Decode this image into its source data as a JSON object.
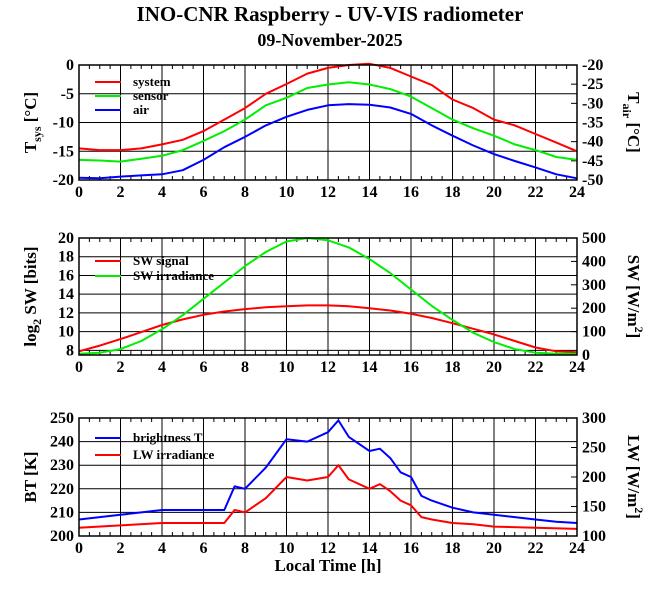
{
  "chart_data": {
    "title": "INO-CNR Raspberry - UV-VIS radiometer",
    "subtitle": "09-November-2025",
    "xlabel": "Local Time [h]",
    "panels": [
      {
        "type": "line",
        "xlim": [
          0,
          24
        ],
        "xticks": [
          0,
          2,
          4,
          6,
          8,
          10,
          12,
          14,
          16,
          18,
          20,
          22,
          24
        ],
        "grid": true,
        "left_axis": {
          "label": "T",
          "sub": "sys",
          "unit": " [°C]",
          "sup": "",
          "unit_end": "",
          "ylim": [
            -20,
            0
          ],
          "ticks": [
            0,
            -5,
            -10,
            -15,
            -20
          ]
        },
        "right_axis": {
          "label": "T",
          "sub": "air",
          "unit": " [°C]",
          "sup": "",
          "unit_end": "",
          "ylim": [
            -50,
            -20
          ],
          "ticks": [
            -20,
            -25,
            -30,
            -35,
            -40,
            -45,
            -50
          ]
        },
        "legend_placement": "top-left",
        "series": [
          {
            "name": "system",
            "axis": "left",
            "color": "#ff0000",
            "x": [
              0,
              1,
              2,
              3,
              4,
              5,
              6,
              7,
              8,
              9,
              10,
              11,
              12,
              13,
              14,
              15,
              16,
              17,
              18,
              19,
              20,
              21,
              22,
              23,
              24
            ],
            "y": [
              -14.5,
              -14.8,
              -14.8,
              -14.5,
              -13.8,
              -13,
              -11.5,
              -9.5,
              -7.5,
              -5,
              -3.3,
              -1.5,
              -0.5,
              0,
              0.2,
              -0.5,
              -2,
              -3.5,
              -6,
              -7.5,
              -9.5,
              -10.5,
              -12,
              -13.5,
              -15
            ]
          },
          {
            "name": "sensor",
            "axis": "left",
            "color": "#00ee00",
            "x": [
              0,
              1,
              2,
              3,
              4,
              5,
              6,
              7,
              8,
              9,
              10,
              11,
              12,
              13,
              14,
              15,
              16,
              17,
              18,
              19,
              20,
              21,
              22,
              23,
              24
            ],
            "y": [
              -16.5,
              -16.6,
              -16.8,
              -16.3,
              -15.8,
              -14.8,
              -13.2,
              -11.5,
              -9.5,
              -7,
              -5.7,
              -4,
              -3.4,
              -3,
              -3.4,
              -4.2,
              -5.5,
              -7.5,
              -9.5,
              -11,
              -12.3,
              -13.8,
              -14.8,
              -16,
              -16.5
            ]
          },
          {
            "name": "air",
            "axis": "right",
            "color": "#0000ff",
            "x": [
              0,
              1,
              2,
              3,
              4,
              5,
              6,
              7,
              8,
              9,
              10,
              11,
              12,
              13,
              14,
              15,
              16,
              17,
              18,
              19,
              20,
              21,
              22,
              23,
              24
            ],
            "y": [
              -49.4,
              -49.55,
              -49.1,
              -48.8,
              -48.5,
              -47.45,
              -44.75,
              -41.45,
              -38.75,
              -35.75,
              -33.5,
              -31.7,
              -30.5,
              -30.2,
              -30.35,
              -31.1,
              -32.75,
              -35.75,
              -38.45,
              -41,
              -43.25,
              -45.05,
              -46.7,
              -48.5,
              -49.55
            ]
          }
        ]
      },
      {
        "type": "line",
        "xlim": [
          0,
          24
        ],
        "xticks": [
          0,
          2,
          4,
          6,
          8,
          10,
          12,
          14,
          16,
          18,
          20,
          22,
          24
        ],
        "grid": true,
        "left_axis": {
          "label": "log",
          "sub": "2",
          "unit": " SW [bits]",
          "sup": "",
          "unit_end": "",
          "ylim": [
            7.5,
            20
          ],
          "ticks": [
            20,
            18,
            16,
            14,
            12,
            10,
            8
          ]
        },
        "right_axis": {
          "label": "SW [W/m",
          "sub": "",
          "unit": "",
          "sup": "2",
          "unit_end": "]",
          "ylim": [
            0,
            500
          ],
          "ticks": [
            500,
            400,
            300,
            200,
            100,
            0
          ]
        },
        "legend_placement": "top-left",
        "series": [
          {
            "name": "SW signal",
            "axis": "left",
            "color": "#ff0000",
            "x": [
              0,
              1,
              2,
              3,
              4,
              5,
              6,
              7,
              8,
              9,
              10,
              11,
              12,
              13,
              14,
              15,
              16,
              17,
              18,
              19,
              20,
              21,
              22,
              23,
              24
            ],
            "y": [
              7.9,
              8.5,
              9.2,
              9.95,
              10.7,
              11.3,
              11.8,
              12.15,
              12.4,
              12.6,
              12.7,
              12.8,
              12.8,
              12.7,
              12.5,
              12.25,
              11.9,
              11.45,
              10.9,
              10.3,
              9.7,
              9.0,
              8.3,
              7.9,
              7.8
            ]
          },
          {
            "name": "SW irradiance",
            "axis": "right",
            "color": "#00ee00",
            "x": [
              0,
              1,
              2,
              3,
              4,
              5,
              6,
              7,
              8,
              9,
              10,
              11,
              12,
              13,
              14,
              15,
              16,
              17,
              18,
              19,
              20,
              21,
              22,
              23,
              24
            ],
            "y": [
              5,
              10,
              25,
              60,
              110,
              170,
              240,
              310,
              380,
              440,
              485,
              500,
              490,
              460,
              410,
              350,
              280,
              210,
              150,
              95,
              55,
              25,
              10,
              5,
              5
            ]
          }
        ]
      },
      {
        "type": "line",
        "xlim": [
          0,
          24
        ],
        "xticks": [
          0,
          2,
          4,
          6,
          8,
          10,
          12,
          14,
          16,
          18,
          20,
          22,
          24
        ],
        "grid": true,
        "left_axis": {
          "label": "BT [K]",
          "sub": "",
          "unit": "",
          "sup": "",
          "unit_end": "",
          "ylim": [
            200,
            250
          ],
          "ticks": [
            250,
            240,
            230,
            220,
            210,
            200
          ]
        },
        "right_axis": {
          "label": "LW [W/m",
          "sub": "",
          "unit": "",
          "sup": "2",
          "unit_end": "]",
          "ylim": [
            100,
            300
          ],
          "ticks": [
            300,
            250,
            200,
            150,
            100
          ]
        },
        "legend_placement": "top-left",
        "series": [
          {
            "name": "brightness T",
            "axis": "left",
            "color": "#0000ff",
            "x": [
              0,
              1,
              2,
              3,
              4,
              5,
              6,
              7,
              7.5,
              8,
              9,
              10,
              11,
              12,
              12.5,
              13,
              14,
              14.5,
              15,
              15.5,
              16,
              16.5,
              17,
              18,
              19,
              20,
              21,
              22,
              23,
              24
            ],
            "y": [
              207,
              208,
              209,
              210,
              211,
              211,
              211,
              211,
              221,
              220,
              229,
              241,
              240,
              244,
              249,
              242,
              236,
              237,
              233,
              227,
              225,
              217,
              215,
              212,
              210,
              209,
              208,
              207,
              206,
              205.5
            ]
          },
          {
            "name": "LW irradiance",
            "axis": "right",
            "color": "#ff0000",
            "x": [
              0,
              2,
              4,
              7,
              7.5,
              8,
              9,
              10,
              11,
              12,
              12.5,
              13,
              14,
              14.5,
              15,
              15.5,
              16,
              16.5,
              17,
              18,
              19,
              20,
              22,
              24
            ],
            "y": [
              114,
              118,
              122,
              122,
              144,
              140,
              164,
              200,
              194,
              200,
              220,
              196,
              180,
              188,
              176,
              160,
              152,
              132,
              128,
              122,
              120,
              116,
              114,
              112
            ]
          }
        ]
      }
    ]
  }
}
